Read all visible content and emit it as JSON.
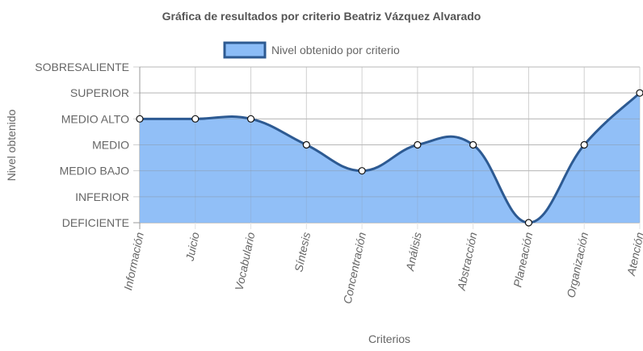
{
  "chart_data": {
    "type": "area",
    "title": "Gráfica de resultados por criterio Beatriz Vázquez Alvarado",
    "xlabel": "Criterios",
    "ylabel": "Nivel obtenido",
    "categories": [
      "Información",
      "Juicio",
      "Vocabulario",
      "Síntesis",
      "Concentración",
      "Análisis",
      "Abstracción",
      "Planeación",
      "Organización",
      "Atención"
    ],
    "y_levels": [
      "DEFICIENTE",
      "INFERIOR",
      "MEDIO BAJO",
      "MEDIO",
      "MEDIO ALTO",
      "SUPERIOR",
      "SOBRESALIENTE"
    ],
    "ylim": [
      0,
      6
    ],
    "series": [
      {
        "name": "Nivel obtenido por criterio",
        "values": [
          4,
          4,
          4,
          3,
          2,
          3,
          3,
          0,
          3,
          5
        ],
        "fill_color": "#8bbcf7",
        "line_color": "#2d5a92"
      }
    ],
    "legend_position": "top",
    "grid": true
  }
}
